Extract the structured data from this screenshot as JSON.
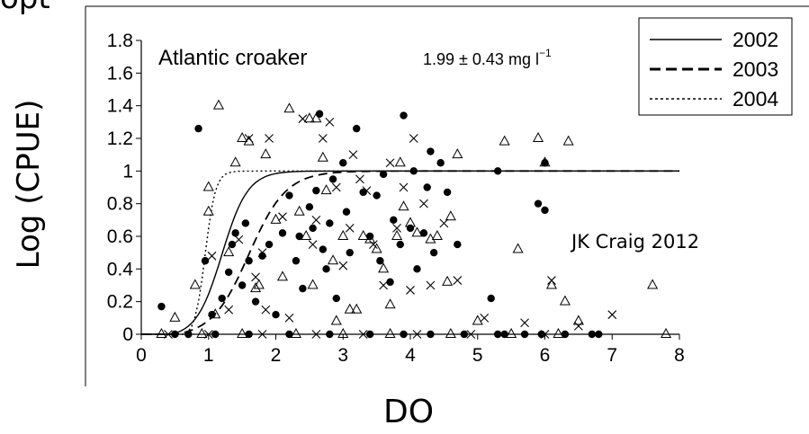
{
  "header": {
    "title_fragment": "opt"
  },
  "axis_titles": {
    "x": "DO",
    "y": "Log (CPUE)"
  },
  "credit": "JK Craig 2012",
  "chart_data": {
    "type": "scatter",
    "panel_label": "Atlantic croaker",
    "annotation": "1.99 ± 0.43 mg l",
    "annotation_superscript": "−1",
    "xlim": [
      0,
      8
    ],
    "ylim": [
      0,
      1.8
    ],
    "x_ticks": [
      "0",
      "1",
      "2",
      "3",
      "4",
      "5",
      "6",
      "7",
      "8"
    ],
    "y_ticks": [
      "0",
      "0.2",
      "0.4",
      "0.6",
      "0.8",
      "1",
      "1.2",
      "1.4",
      "1.6",
      "1.8"
    ],
    "grid": false,
    "legend_position": "top-right",
    "series": [
      {
        "name": "2002",
        "marker": "filled-circle",
        "line_style": "solid",
        "curve_x0": 1.2,
        "curve_k": 2.6,
        "points": [
          [
            0.3,
            0.17
          ],
          [
            0.85,
            1.26
          ],
          [
            0.95,
            0.45
          ],
          [
            1.05,
            0.12
          ],
          [
            1.2,
            0.22
          ],
          [
            1.3,
            0.38
          ],
          [
            1.35,
            0.55
          ],
          [
            1.4,
            0.62
          ],
          [
            1.5,
            0.3
          ],
          [
            1.55,
            0.68
          ],
          [
            1.6,
            0.45
          ],
          [
            1.7,
            0.2
          ],
          [
            1.8,
            0.48
          ],
          [
            1.9,
            0.55
          ],
          [
            2.0,
            0.12
          ],
          [
            2.1,
            0.62
          ],
          [
            2.2,
            0.85
          ],
          [
            2.3,
            0.45
          ],
          [
            2.35,
            0.6
          ],
          [
            2.4,
            0.28
          ],
          [
            2.5,
            0.78
          ],
          [
            2.55,
            0.65
          ],
          [
            2.6,
            0.88
          ],
          [
            2.65,
            1.35
          ],
          [
            2.7,
            0.52
          ],
          [
            2.75,
            0.4
          ],
          [
            2.8,
            0.68
          ],
          [
            2.85,
            0.95
          ],
          [
            2.9,
            0.22
          ],
          [
            3.0,
            1.05
          ],
          [
            3.05,
            0.75
          ],
          [
            3.1,
            0.5
          ],
          [
            3.2,
            1.26
          ],
          [
            3.3,
            0.87
          ],
          [
            3.4,
            0.6
          ],
          [
            3.5,
            0.85
          ],
          [
            3.55,
            0.45
          ],
          [
            3.6,
            0.98
          ],
          [
            3.7,
            0.32
          ],
          [
            3.75,
            0.7
          ],
          [
            3.85,
            0.55
          ],
          [
            3.9,
            1.34
          ],
          [
            4.0,
            0.65
          ],
          [
            4.05,
            1.0
          ],
          [
            4.1,
            0.4
          ],
          [
            4.2,
            0.62
          ],
          [
            4.25,
            0.9
          ],
          [
            4.3,
            1.12
          ],
          [
            4.35,
            0.5
          ],
          [
            4.45,
            1.05
          ],
          [
            4.55,
            0.87
          ],
          [
            4.7,
            0.55
          ],
          [
            5.2,
            0.22
          ],
          [
            5.3,
            1.0
          ],
          [
            5.9,
            0.8
          ],
          [
            6.0,
            0.76
          ],
          [
            6.0,
            1.05
          ],
          [
            5.4,
            0.0
          ],
          [
            5.95,
            0.0
          ],
          [
            6.8,
            0.0
          ],
          [
            0.5,
            0.0
          ],
          [
            0.7,
            0.0
          ],
          [
            1.1,
            0.0
          ],
          [
            1.6,
            0.0
          ],
          [
            2.2,
            0.0
          ],
          [
            2.8,
            0.0
          ],
          [
            3.4,
            0.0
          ],
          [
            3.9,
            0.0
          ],
          [
            4.3,
            0.0
          ],
          [
            4.8,
            0.0
          ],
          [
            5.3,
            0.0
          ],
          [
            5.7,
            0.0
          ],
          [
            6.3,
            0.0
          ],
          [
            6.7,
            0.0
          ]
        ]
      },
      {
        "name": "2003",
        "marker": "cross",
        "line_style": "dashed",
        "curve_x0": 1.6,
        "curve_k": 1.8,
        "points": [
          [
            1.05,
            0.48
          ],
          [
            1.3,
            0.15
          ],
          [
            1.45,
            0.58
          ],
          [
            1.6,
            1.2
          ],
          [
            1.7,
            0.35
          ],
          [
            1.8,
            0.5
          ],
          [
            1.85,
            0.15
          ],
          [
            1.9,
            1.2
          ],
          [
            2.1,
            0.72
          ],
          [
            2.2,
            0.1
          ],
          [
            2.4,
            1.32
          ],
          [
            2.55,
            0.55
          ],
          [
            2.6,
            0.7
          ],
          [
            2.7,
            1.2
          ],
          [
            2.8,
            1.3
          ],
          [
            2.9,
            0.9
          ],
          [
            3.0,
            0.42
          ],
          [
            3.1,
            0.65
          ],
          [
            3.15,
            1.1
          ],
          [
            3.25,
            0.95
          ],
          [
            3.35,
            0.88
          ],
          [
            3.45,
            0.55
          ],
          [
            3.6,
            0.3
          ],
          [
            3.7,
            1.05
          ],
          [
            3.8,
            0.65
          ],
          [
            3.9,
            0.9
          ],
          [
            4.0,
            0.27
          ],
          [
            4.05,
            1.2
          ],
          [
            4.2,
            0.8
          ],
          [
            4.3,
            0.3
          ],
          [
            4.5,
            0.68
          ],
          [
            4.7,
            0.33
          ],
          [
            4.9,
            0.0
          ],
          [
            5.1,
            0.1
          ],
          [
            5.7,
            0.07
          ],
          [
            6.1,
            0.33
          ],
          [
            6.5,
            0.05
          ],
          [
            7.0,
            0.12
          ],
          [
            0.4,
            0.0
          ],
          [
            1.0,
            0.0
          ],
          [
            1.8,
            0.0
          ],
          [
            2.6,
            0.0
          ],
          [
            3.3,
            0.0
          ],
          [
            4.1,
            0.0
          ],
          [
            6.0,
            0.0
          ]
        ]
      },
      {
        "name": "2004",
        "marker": "open-triangle",
        "line_style": "dotted",
        "curve_x0": 0.95,
        "curve_k": 6.5,
        "points": [
          [
            0.5,
            0.1
          ],
          [
            0.8,
            0.3
          ],
          [
            1.0,
            0.9
          ],
          [
            1.0,
            0.75
          ],
          [
            1.1,
            0.12
          ],
          [
            1.15,
            1.4
          ],
          [
            1.3,
            0.5
          ],
          [
            1.4,
            1.05
          ],
          [
            1.5,
            1.2
          ],
          [
            1.6,
            1.18
          ],
          [
            1.7,
            0.28
          ],
          [
            1.75,
            0.3
          ],
          [
            1.85,
            1.1
          ],
          [
            2.0,
            0.7
          ],
          [
            2.1,
            0.35
          ],
          [
            2.2,
            1.38
          ],
          [
            2.35,
            0.75
          ],
          [
            2.45,
            0.6
          ],
          [
            2.5,
            1.32
          ],
          [
            2.55,
            0.3
          ],
          [
            2.6,
            1.32
          ],
          [
            2.7,
            1.08
          ],
          [
            2.75,
            0.88
          ],
          [
            2.85,
            0.45
          ],
          [
            2.9,
            0.08
          ],
          [
            3.0,
            0.6
          ],
          [
            3.1,
            0.15
          ],
          [
            3.2,
            0.15
          ],
          [
            3.3,
            0.6
          ],
          [
            3.4,
            0.58
          ],
          [
            3.5,
            0.52
          ],
          [
            3.6,
            0.4
          ],
          [
            3.7,
            0.18
          ],
          [
            3.8,
            0.6
          ],
          [
            3.85,
            1.05
          ],
          [
            3.9,
            0.78
          ],
          [
            4.0,
            0.68
          ],
          [
            4.1,
            0.62
          ],
          [
            4.3,
            0.58
          ],
          [
            4.4,
            0.6
          ],
          [
            4.55,
            0.32
          ],
          [
            4.6,
            0.72
          ],
          [
            4.7,
            1.1
          ],
          [
            5.0,
            0.08
          ],
          [
            5.4,
            1.18
          ],
          [
            5.6,
            0.52
          ],
          [
            5.9,
            1.2
          ],
          [
            6.0,
            1.05
          ],
          [
            6.1,
            0.3
          ],
          [
            6.3,
            0.2
          ],
          [
            6.35,
            1.18
          ],
          [
            6.5,
            0.08
          ],
          [
            7.6,
            0.3
          ],
          [
            7.8,
            0.0
          ],
          [
            0.3,
            0.0
          ],
          [
            0.9,
            0.0
          ],
          [
            1.5,
            0.0
          ],
          [
            2.3,
            0.0
          ],
          [
            3.0,
            0.0
          ],
          [
            3.7,
            0.0
          ],
          [
            4.6,
            0.0
          ],
          [
            5.5,
            0.0
          ],
          [
            6.2,
            0.0
          ]
        ]
      }
    ]
  }
}
